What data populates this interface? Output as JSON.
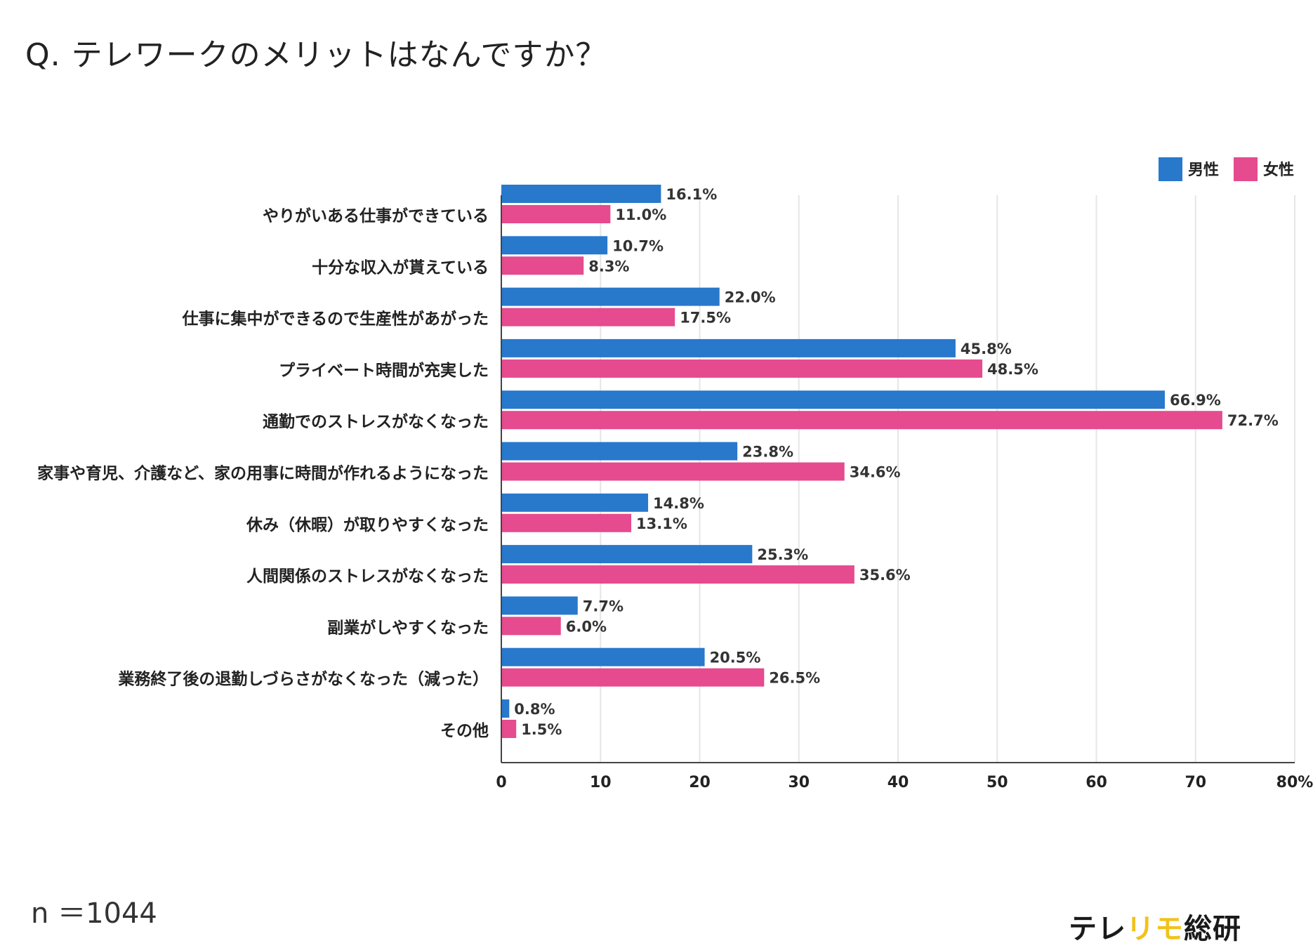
{
  "question": "Q. テレワークのメリットはなんですか？",
  "sample_size": "n ＝1044",
  "brand": {
    "part1": "テレ",
    "part2": "リモ",
    "part3": "総研"
  },
  "colors": {
    "male": "#2878cc",
    "female": "#e54b8e",
    "grid": "#e6e6e6",
    "axis": "#444444"
  },
  "chart_data": {
    "type": "bar",
    "orientation": "horizontal",
    "title": "Q. テレワークのメリットはなんですか？",
    "categories": [
      "やりがいある仕事ができている",
      "十分な収入が貰えている",
      "仕事に集中ができるので生産性があがった",
      "プライベート時間が充実した",
      "通勤でのストレスがなくなった",
      "家事や育児、介護など、家の用事に時間が作れるようになった",
      "休み（休暇）が取りやすくなった",
      "人間関係のストレスがなくなった",
      "副業がしやすくなった",
      "業務終了後の退勤しづらさがなくなった（減った）",
      "その他"
    ],
    "series": [
      {
        "name": "男性",
        "values": [
          16.1,
          10.7,
          22.0,
          45.8,
          66.9,
          23.8,
          14.8,
          25.3,
          7.7,
          20.5,
          0.8
        ],
        "labels": [
          "16.1%",
          "10.7%",
          "22.0%",
          "45.8%",
          "66.9%",
          "23.8%",
          "14.8%",
          "25.3%",
          "7.7%",
          "20.5%",
          "0.8%"
        ]
      },
      {
        "name": "女性",
        "values": [
          11.0,
          8.3,
          17.5,
          48.5,
          72.7,
          34.6,
          13.1,
          35.6,
          6.0,
          26.5,
          1.5
        ],
        "labels": [
          "11.0%",
          "8.3%",
          "17.5%",
          "48.5%",
          "72.7%",
          "34.6%",
          "13.1%",
          "35.6%",
          "6.0%",
          "26.5%",
          "1.5%"
        ]
      }
    ],
    "xlim": [
      0,
      80
    ],
    "xticks": [
      0,
      10,
      20,
      30,
      40,
      50,
      60,
      70,
      80
    ],
    "xtick_labels": [
      "0",
      "10",
      "20",
      "30",
      "40",
      "50",
      "60",
      "70",
      "80%"
    ],
    "legend": [
      "男性",
      "女性"
    ],
    "legend_position": "top-right",
    "grid": true
  }
}
